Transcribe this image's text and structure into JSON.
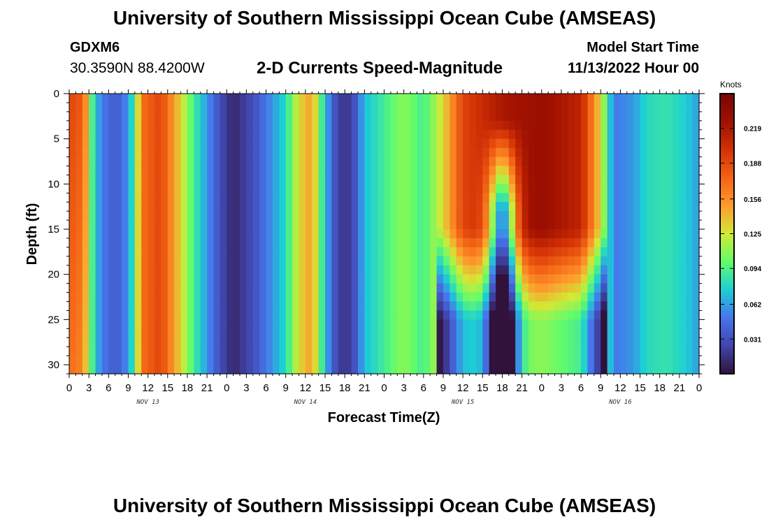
{
  "header": {
    "title": "University of Southern Mississippi Ocean Cube (AMSEAS)",
    "station_id": "GDXM6",
    "location": "30.3590N  88.4200W",
    "plot_title": "2-D Currents Speed-Magnitude",
    "model_start_label": "Model Start Time",
    "model_start_value": "11/13/2022 Hour 00"
  },
  "footer": {
    "title": "University of Southern Mississippi Ocean Cube (AMSEAS)"
  },
  "colors": {
    "background": "#ffffff",
    "axis": "#000000"
  },
  "chart_data": {
    "type": "heatmap",
    "title": "2-D Currents Speed-Magnitude",
    "xlabel": "Forecast Time(Z)",
    "ylabel": "Depth (ft)",
    "units": "Knots",
    "ylim": [
      0,
      31
    ],
    "y_ticks": [
      0,
      5,
      10,
      15,
      20,
      25,
      30
    ],
    "x_tick_labels": [
      "0",
      "3",
      "6",
      "9",
      "12",
      "15",
      "18",
      "21",
      "0",
      "3",
      "6",
      "9",
      "12",
      "15",
      "18",
      "21",
      "0",
      "3",
      "6",
      "9",
      "12",
      "15",
      "18",
      "21",
      "0",
      "3",
      "6",
      "9",
      "12",
      "15",
      "18",
      "21",
      "0"
    ],
    "x_range_hours": [
      0,
      96
    ],
    "day_labels": [
      {
        "label": "NOV 13",
        "hour": 12
      },
      {
        "label": "NOV 14",
        "hour": 36
      },
      {
        "label": "NOV 15",
        "hour": 60
      },
      {
        "label": "NOV 16",
        "hour": 84
      }
    ],
    "colorbar": {
      "label": "Knots",
      "min": 0.0,
      "max": 0.25,
      "ticks": [
        "0.219",
        "0.188",
        "0.156",
        "0.125",
        "0.094",
        "0.062",
        "0.031"
      ],
      "tick_values": [
        0.219,
        0.188,
        0.156,
        0.125,
        0.094,
        0.062,
        0.031
      ]
    },
    "surface_profile_knots": [
      {
        "hour": 0,
        "value": 0.17
      },
      {
        "hour": 2,
        "value": 0.16
      },
      {
        "hour": 4,
        "value": 0.07
      },
      {
        "hour": 6,
        "value": 0.04
      },
      {
        "hour": 8,
        "value": 0.04
      },
      {
        "hour": 10,
        "value": 0.09
      },
      {
        "hour": 11,
        "value": 0.17
      },
      {
        "hour": 14,
        "value": 0.19
      },
      {
        "hour": 17,
        "value": 0.13
      },
      {
        "hour": 19,
        "value": 0.09
      },
      {
        "hour": 21,
        "value": 0.06
      },
      {
        "hour": 23,
        "value": 0.03
      },
      {
        "hour": 25,
        "value": 0.01
      },
      {
        "hour": 28,
        "value": 0.03
      },
      {
        "hour": 31,
        "value": 0.06
      },
      {
        "hour": 33,
        "value": 0.08
      },
      {
        "hour": 35,
        "value": 0.13
      },
      {
        "hour": 37,
        "value": 0.15
      },
      {
        "hour": 39,
        "value": 0.07
      },
      {
        "hour": 41,
        "value": 0.02
      },
      {
        "hour": 43,
        "value": 0.02
      },
      {
        "hour": 45,
        "value": 0.07
      },
      {
        "hour": 48,
        "value": 0.09
      },
      {
        "hour": 51,
        "value": 0.11
      },
      {
        "hour": 54,
        "value": 0.09
      },
      {
        "hour": 57,
        "value": 0.13
      },
      {
        "hour": 60,
        "value": 0.19
      },
      {
        "hour": 66,
        "value": 0.22
      },
      {
        "hour": 72,
        "value": 0.23
      },
      {
        "hour": 78,
        "value": 0.21
      },
      {
        "hour": 81,
        "value": 0.13
      },
      {
        "hour": 83,
        "value": 0.05
      },
      {
        "hour": 86,
        "value": 0.06
      },
      {
        "hour": 88,
        "value": 0.08
      },
      {
        "hour": 91,
        "value": 0.085
      },
      {
        "hour": 94,
        "value": 0.075
      },
      {
        "hour": 96,
        "value": 0.06
      }
    ]
  }
}
